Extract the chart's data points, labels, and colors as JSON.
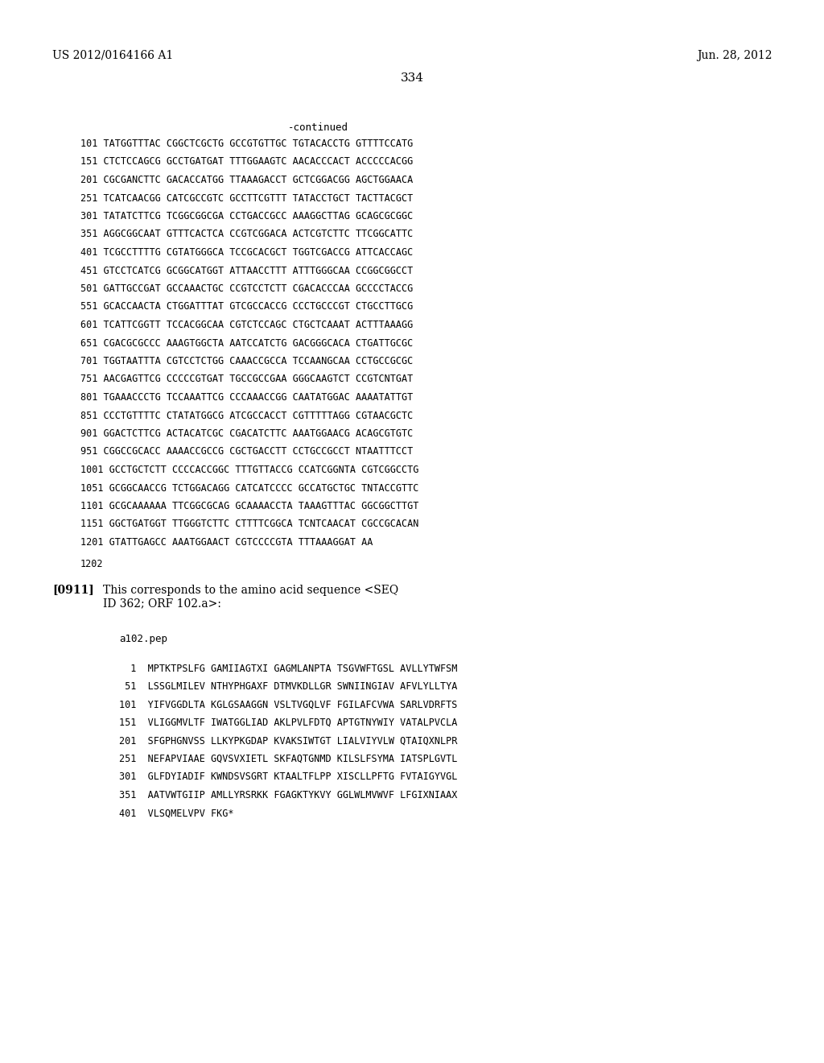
{
  "header_left": "US 2012/0164166 A1",
  "header_right": "Jun. 28, 2012",
  "page_number": "334",
  "continued_label": "-continued",
  "background_color": "#ffffff",
  "text_color": "#000000",
  "dna_lines": [
    "101 TATGGTTTAC CGGCTCGCTG GCCGTGTTGC TGTACACCTG GTTTTCCATG",
    "151 CTCTCCAGCG GCCTGATGAT TTTGGAAGTC AACACCCACT ACCCCCACGG",
    "201 CGCGANCTTC GACACCATGG TTAAAGACCT GCTCGGACGG AGCTGGAACA",
    "251 TCATCAACGG CATCGCCGTC GCCTTCGTTT TATACCTGCT TACTTACGCT",
    "301 TATATCTTCG TCGGCGGCGA CCTGACCGCC AAAGGCTTAG GCAGCGCGGC",
    "351 AGGCGGCAAT GTTTCACTCA CCGTCGGACA ACTCGTCTTC TTCGGCATTC",
    "401 TCGCCTTTTG CGTATGGGCA TCCGCACGCT TGGTCGACCG ATTCACCAGC",
    "451 GTCCTCATCG GCGGCATGGT ATTAACCTTT ATTTGGGCAA CCGGCGGCCT",
    "501 GATTGCCGAT GCCAAACTGC CCGTCCTCTT CGACACCCAA GCCCCTACCG",
    "551 GCACCAACTA CTGGATTTAT GTCGCCACCG CCCTGCCCGT CTGCCTTGCG",
    "601 TCATTCGGTT TCCACGGCAA CGTCTCCAGC CTGCTCAAAT ACTTTAAAGG",
    "651 CGACGCGCCC AAAGTGGCTA AATCCATCTG GACGGGCACA CTGATTGCGC",
    "701 TGGTAATTTA CGTCCTCTGG CAAACCGCCA TCCAANGCAA CCTGCCGCGC",
    "751 AACGAGTTCG CCCCCGTGAT TGCCGCCGAA GGGCAAGTCT CCGTCNTGAT",
    "801 TGAAACCCTG TCCAAATTCG CCCAAACCGG CAATATGGAC AAAATATTGT",
    "851 CCCTGTTTTC CTATATGGCG ATCGCCACCT CGTTTTTAGG CGTAACGCTC",
    "901 GGACTCTTCG ACTACATCGC CGACATCTTC AAATGGAACG ACAGCGTGTC",
    "951 CGGCCGCACC AAAACCGCCG CGCTGACCTT CCTGCCGCCT NTAATTTCCT",
    "1001 GCCTGCTCTT CCCCACCGGC TTTGTTACCG CCATCGGNTA CGTCGGCCTG",
    "1051 GCGGCAACCG TCTGGACAGG CATCATCCCC GCCATGCTGC TNTACCGTTC",
    "1101 GCGCAAAAAA TTCGGCGCAG GCAAAACCTA TAAAGTTTAC GGCGGCTTGT",
    "1151 GGCTGATGGT TTGGGTCTTC CTTTTCGGCA TCNTCAACAT CGCCGCACAN",
    "1201 GTATTGAGCC AAATGGAACT CGTCCCCGTA TTTAAAGGAT AA"
  ],
  "dna_end_number": "1202",
  "para_label": "[0911]",
  "para_text_line1": "This corresponds to the amino acid sequence <SEQ",
  "para_text_line2": "ID 362; ORF 102.a>:",
  "pep_label": "a102.pep",
  "aa_lines": [
    "  1  MPTKTPSLFG GAMIIAGTXI GAGMLANPTA TSGVWFTGSL AVLLYTWFSM",
    " 51  LSSGLMILEV NTHYPHGAXF DTMVKDLLGR SWNIINGIAV AFVLYLLTYA",
    "101  YIFVGGDLTA KGLGSAAGGN VSLTVGQLVF FGILAFCVWA SARLVDRFTS",
    "151  VLIGGMVLTF IWATGGLIAD AKLPVLFDTQ APTGTNYWIY VATALPVCLA",
    "201  SFGPHGNVSS LLKYPKGDAP KVAKSIWTGT LIALVIYVLW QTAIQXNLPR",
    "251  NEFAPVIAAE GQVSVXIETL SKFAQTGNMD KILSLFSYMA IATSPLGVTL",
    "301  GLFDYIADIF KWNDSVSGRT KTAALTFLPP XISCLLPFTG FVTAIGYVGL",
    "351  AATVWTGIIP AMLLYRSRKK FGAGKTYKVY GGLWLMVWVF LFGIXNIAAX",
    "401  VLSQMELVPV FKG*"
  ]
}
